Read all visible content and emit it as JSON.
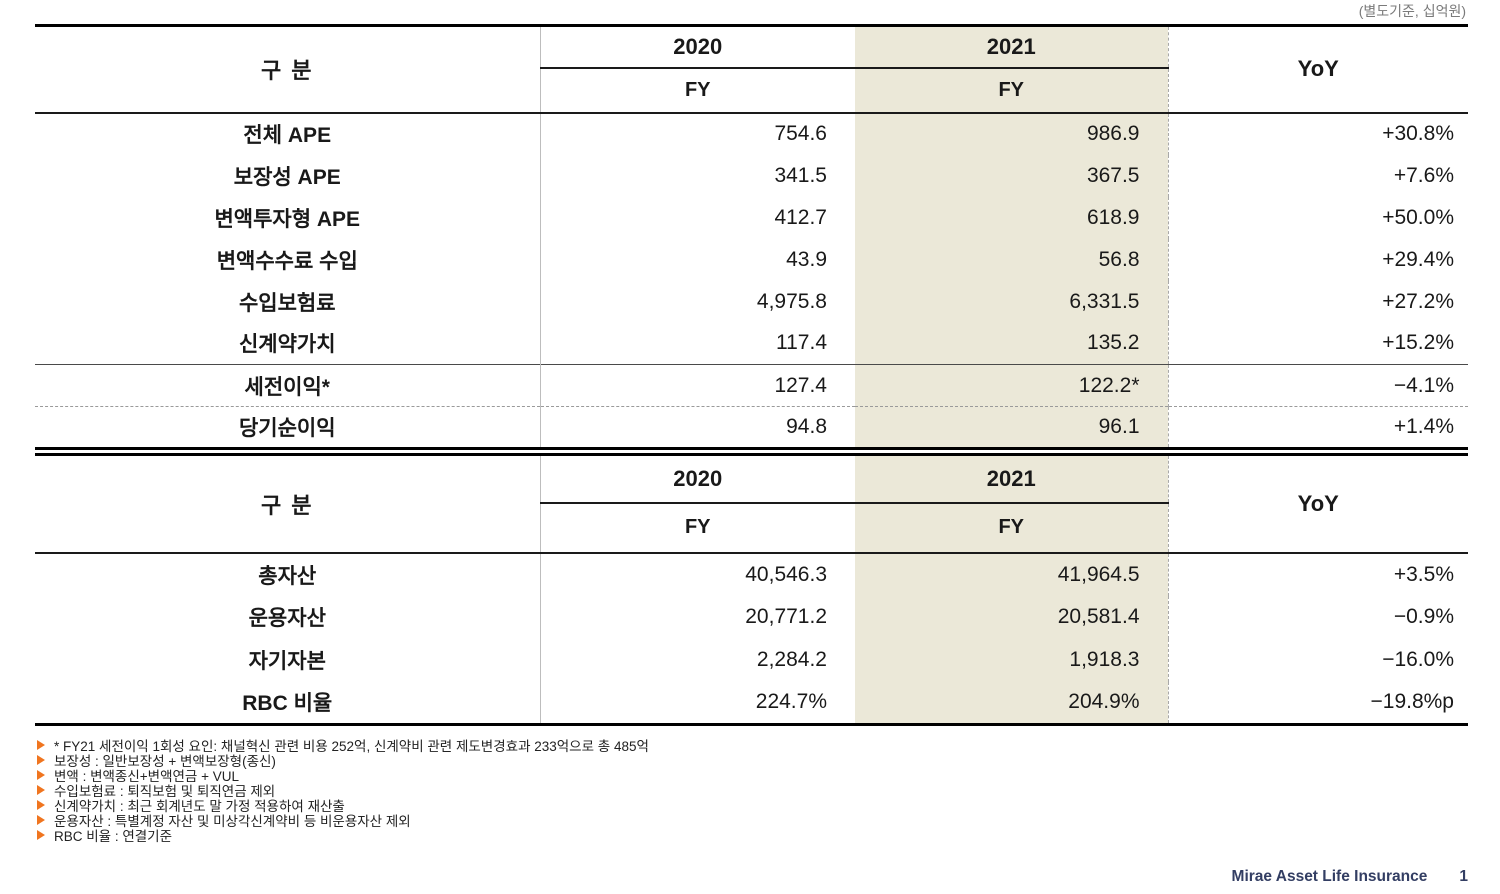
{
  "colors": {
    "highlight_beige": "#ebe8d8",
    "bullet_orange": "#f0751f",
    "footer_navy": "#333e63"
  },
  "unit_note": "(별도기준, 십억원)",
  "t1": {
    "header": {
      "category": "구 분",
      "y2020": "2020",
      "y2021": "2021",
      "yoy": "YoY",
      "fy2020": "FY",
      "fy2021": "FY"
    },
    "rows": [
      {
        "label": "전체 APE",
        "v2020": "754.6",
        "v2021": "986.9",
        "yoy": "+30.8%"
      },
      {
        "label": "보장성 APE",
        "v2020": "341.5",
        "v2021": "367.5",
        "yoy": "+7.6%"
      },
      {
        "label": "변액투자형 APE",
        "v2020": "412.7",
        "v2021": "618.9",
        "yoy": "+50.0%"
      },
      {
        "label": "변액수수료 수입",
        "v2020": "43.9",
        "v2021": "56.8",
        "yoy": "+29.4%"
      },
      {
        "label": "수입보험료",
        "v2020": "4,975.8",
        "v2021": "6,331.5",
        "yoy": "+27.2%"
      },
      {
        "label": "신계약가치",
        "v2020": "117.4",
        "v2021": "135.2",
        "yoy": "+15.2%"
      },
      {
        "label": "세전이익*",
        "v2020": "127.4",
        "v2021": "122.2*",
        "yoy": "−4.1%"
      },
      {
        "label": "당기순이익",
        "v2020": "94.8",
        "v2021": "96.1",
        "yoy": "+1.4%"
      }
    ]
  },
  "t2": {
    "header": {
      "category": "구 분",
      "y2020": "2020",
      "y2021": "2021",
      "yoy": "YoY",
      "fy2020": "FY",
      "fy2021": "FY"
    },
    "rows": [
      {
        "label": "총자산",
        "v2020": "40,546.3",
        "v2021": "41,964.5",
        "yoy": "+3.5%"
      },
      {
        "label": "운용자산",
        "v2020": "20,771.2",
        "v2021": "20,581.4",
        "yoy": "−0.9%"
      },
      {
        "label": "자기자본",
        "v2020": "2,284.2",
        "v2021": "1,918.3",
        "yoy": "−16.0%"
      },
      {
        "label": "RBC 비율",
        "v2020": "224.7%",
        "v2021": "204.9%",
        "yoy": "−19.8%p"
      }
    ]
  },
  "footnotes": [
    "* FY21 세전이익 1회성 요인: 채널혁신 관련 비용 252억, 신계약비 관련 제도변경효과 233억으로 총 485억",
    "보장성 : 일반보장성 + 변액보장형(종신)",
    "변액 : 변액종신+변액연금 + VUL",
    "수입보험료 : 퇴직보험 및 퇴직연금 제외",
    "신계약가치 : 최근 회계년도 말 가정 적용하여 재산출",
    "운용자산 : 특별계정 자산 및 미상각신계약비 등 비운용자산 제외",
    "RBC 비율 : 연결기준"
  ],
  "footer": {
    "brand": "Mirae Asset Life Insurance",
    "page": "1"
  }
}
